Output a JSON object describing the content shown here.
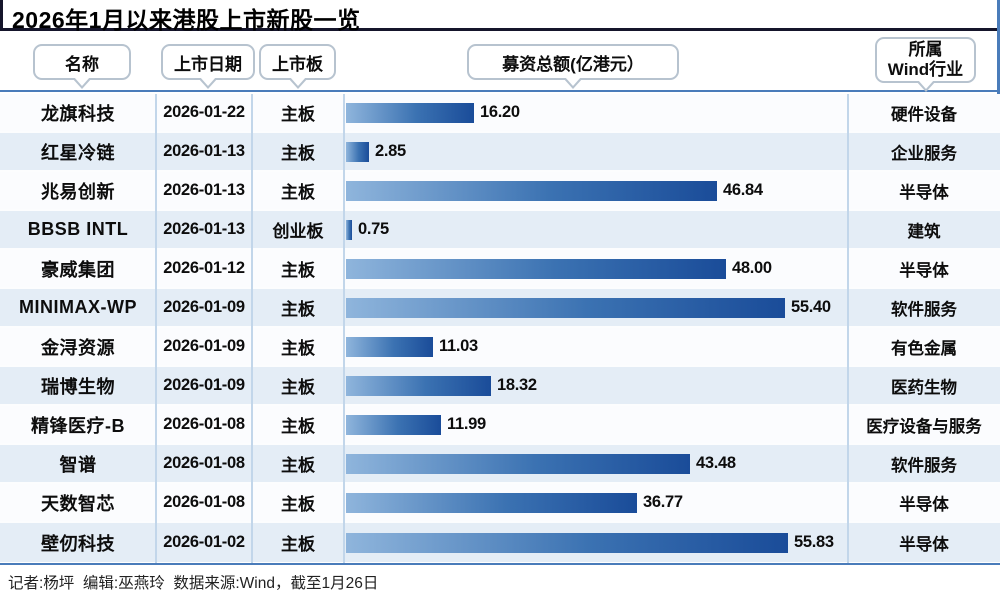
{
  "title": "2026年1月以来港股上市新股一览",
  "header": {
    "name": "名称",
    "date": "上市日期",
    "board": "上市板",
    "amount": "募资总额(亿港元）",
    "industry_line1": "所属",
    "industry_line2": "Wind行业"
  },
  "rows": [
    {
      "name": "龙旗科技",
      "date": "2026-01-22",
      "board": "主板",
      "value": 16.2,
      "label": "16.20",
      "industry": "硬件设备"
    },
    {
      "name": "红星冷链",
      "date": "2026-01-13",
      "board": "主板",
      "value": 2.85,
      "label": "2.85",
      "industry": "企业服务"
    },
    {
      "name": "兆易创新",
      "date": "2026-01-13",
      "board": "主板",
      "value": 46.84,
      "label": "46.84",
      "industry": "半导体"
    },
    {
      "name": "BBSB INTL",
      "date": "2026-01-13",
      "board": "创业板",
      "value": 0.75,
      "label": "0.75",
      "industry": "建筑"
    },
    {
      "name": "豪威集团",
      "date": "2026-01-12",
      "board": "主板",
      "value": 48.0,
      "label": "48.00",
      "industry": "半导体"
    },
    {
      "name": "MINIMAX-WP",
      "date": "2026-01-09",
      "board": "主板",
      "value": 55.4,
      "label": "55.40",
      "industry": "软件服务"
    },
    {
      "name": "金浔资源",
      "date": "2026-01-09",
      "board": "主板",
      "value": 11.03,
      "label": "11.03",
      "industry": "有色金属"
    },
    {
      "name": "瑞博生物",
      "date": "2026-01-09",
      "board": "主板",
      "value": 18.32,
      "label": "18.32",
      "industry": "医药生物"
    },
    {
      "name": "精锋医疗-B",
      "date": "2026-01-08",
      "board": "主板",
      "value": 11.99,
      "label": "11.99",
      "industry": "医疗设备与服务"
    },
    {
      "name": "智谱",
      "date": "2026-01-08",
      "board": "主板",
      "value": 43.48,
      "label": "43.48",
      "industry": "软件服务"
    },
    {
      "name": "天数智芯",
      "date": "2026-01-08",
      "board": "主板",
      "value": 36.77,
      "label": "36.77",
      "industry": "半导体"
    },
    {
      "name": "壁仞科技",
      "date": "2026-01-02",
      "board": "主板",
      "value": 55.83,
      "label": "55.83",
      "industry": "半导体"
    }
  ],
  "footer": "记者:杨坪  编辑:巫燕玲  数据来源:Wind，截至1月26日",
  "colors": {
    "accent_line": "#4a7cba",
    "title_rule": "#15152b",
    "bar_gradient_start": "#8fb5dc",
    "bar_gradient_end": "#1a4c99",
    "row_alt_bg": "#e4edf6",
    "divider": "#c2d6ea"
  },
  "chart_data": {
    "type": "bar",
    "orientation": "horizontal",
    "title": "2026年1月以来港股上市新股一览",
    "xlabel": "募资总额(亿港元）",
    "unit": "亿港元",
    "xlim": [
      0,
      60
    ],
    "grid": false,
    "legend": false,
    "categories": [
      "龙旗科技",
      "红星冷链",
      "兆易创新",
      "BBSB INTL",
      "豪威集团",
      "MINIMAX-WP",
      "金浔资源",
      "瑞博生物",
      "精锋医疗-B",
      "智谱",
      "天数智芯",
      "壁仞科技"
    ],
    "values": [
      16.2,
      2.85,
      46.84,
      0.75,
      48.0,
      55.4,
      11.03,
      18.32,
      11.99,
      43.48,
      36.77,
      55.83
    ],
    "listing_dates": [
      "2026-01-22",
      "2026-01-13",
      "2026-01-13",
      "2026-01-13",
      "2026-01-12",
      "2026-01-09",
      "2026-01-09",
      "2026-01-09",
      "2026-01-08",
      "2026-01-08",
      "2026-01-08",
      "2026-01-02"
    ],
    "listing_boards": [
      "主板",
      "主板",
      "主板",
      "创业板",
      "主板",
      "主板",
      "主板",
      "主板",
      "主板",
      "主板",
      "主板",
      "主板"
    ],
    "industries": [
      "硬件设备",
      "企业服务",
      "半导体",
      "建筑",
      "半导体",
      "软件服务",
      "有色金属",
      "医药生物",
      "医疗设备与服务",
      "软件服务",
      "半导体",
      "半导体"
    ]
  }
}
